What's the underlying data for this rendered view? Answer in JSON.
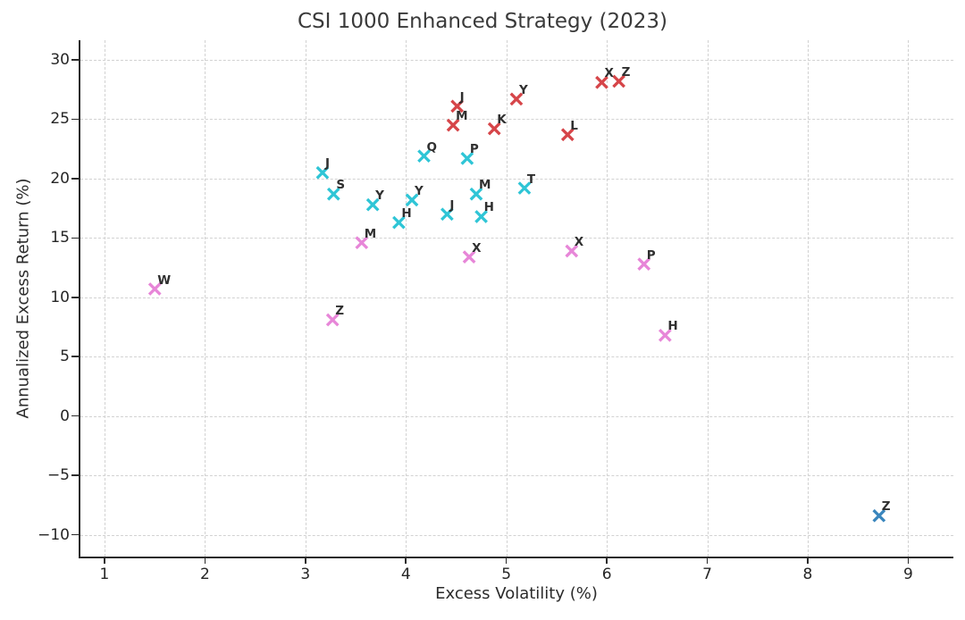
{
  "figure": {
    "title": "CSI 1000 Enhanced Strategy (2023)"
  },
  "chart_data": {
    "type": "scatter",
    "title": "CSI 1000 Enhanced Strategy (2023)",
    "xlabel": "Excess Volatility (%)",
    "ylabel": "Annualized Excess Return (%)",
    "xlim": [
      0.76,
      9.45
    ],
    "ylim": [
      -11.84,
      31.66
    ],
    "xticks": [
      1,
      2,
      3,
      4,
      5,
      6,
      7,
      8,
      9
    ],
    "yticks": [
      -10,
      -5,
      0,
      5,
      10,
      15,
      20,
      25,
      30
    ],
    "grid": true,
    "grid_linestyle": "dashed",
    "legend": "none",
    "marker": "x",
    "axis_color": "#2b2b2b",
    "grid_color": "#d2d2d2",
    "point_label_color": "#2f2f2f",
    "series": [
      {
        "name": "red-points",
        "color": "#d64549",
        "points": [
          {
            "label": "J",
            "x": 4.51,
            "y": 26.1
          },
          {
            "label": "M",
            "x": 4.47,
            "y": 24.5
          },
          {
            "label": "K",
            "x": 4.88,
            "y": 24.2
          },
          {
            "label": "Y",
            "x": 5.1,
            "y": 26.7
          },
          {
            "label": "L",
            "x": 5.61,
            "y": 23.7
          },
          {
            "label": "X",
            "x": 5.95,
            "y": 28.1
          },
          {
            "label": "Z",
            "x": 6.12,
            "y": 28.2
          }
        ]
      },
      {
        "name": "cyan-points",
        "color": "#2fc5d6",
        "points": [
          {
            "label": "J",
            "x": 3.17,
            "y": 20.5
          },
          {
            "label": "S",
            "x": 3.28,
            "y": 18.7
          },
          {
            "label": "Y",
            "x": 3.67,
            "y": 17.8
          },
          {
            "label": "H",
            "x": 3.93,
            "y": 16.3
          },
          {
            "label": "Y",
            "x": 4.06,
            "y": 18.2
          },
          {
            "label": "Q",
            "x": 4.18,
            "y": 21.9
          },
          {
            "label": "J",
            "x": 4.41,
            "y": 17.0
          },
          {
            "label": "P",
            "x": 4.61,
            "y": 21.7
          },
          {
            "label": "M",
            "x": 4.7,
            "y": 18.7
          },
          {
            "label": "H",
            "x": 4.75,
            "y": 16.8
          },
          {
            "label": "T",
            "x": 5.18,
            "y": 19.2
          }
        ]
      },
      {
        "name": "pink-points",
        "color": "#e786d8",
        "points": [
          {
            "label": "W",
            "x": 1.5,
            "y": 10.7
          },
          {
            "label": "Z",
            "x": 3.27,
            "y": 8.1
          },
          {
            "label": "M",
            "x": 3.56,
            "y": 14.6
          },
          {
            "label": "X",
            "x": 4.63,
            "y": 13.4
          },
          {
            "label": "X",
            "x": 5.65,
            "y": 13.9
          },
          {
            "label": "P",
            "x": 6.37,
            "y": 12.8
          },
          {
            "label": "H",
            "x": 6.58,
            "y": 6.8
          }
        ]
      },
      {
        "name": "blue-points",
        "color": "#3a86bd",
        "points": [
          {
            "label": "Z",
            "x": 8.71,
            "y": -8.4
          }
        ]
      }
    ]
  }
}
